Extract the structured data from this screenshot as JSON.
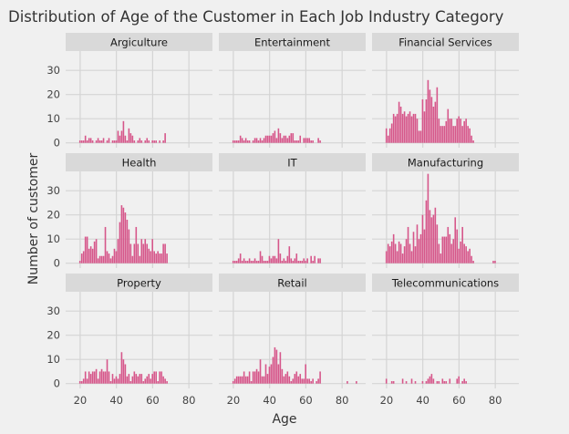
{
  "chart_data": {
    "type": "bar",
    "title": "Distribution of Age of the Customer in Each Job Industry Category",
    "xlabel": "Age",
    "ylabel": "Number of customer",
    "xlim": [
      12,
      93
    ],
    "ylim": [
      -2,
      38
    ],
    "xticks": [
      20,
      40,
      60,
      80
    ],
    "yticks": [
      0,
      10,
      20,
      30
    ],
    "grid": true,
    "bar_color": "#d6568a",
    "panels": [
      {
        "name": "Argiculture",
        "ages": [
          20,
          21,
          22,
          23,
          24,
          25,
          26,
          27,
          28,
          29,
          30,
          31,
          32,
          33,
          34,
          35,
          36,
          37,
          38,
          39,
          40,
          41,
          42,
          43,
          44,
          45,
          46,
          47,
          48,
          49,
          50,
          51,
          52,
          53,
          54,
          55,
          56,
          57,
          58,
          59,
          60,
          61,
          62,
          63,
          64,
          65,
          66,
          67,
          68
        ],
        "counts": [
          1,
          1,
          1,
          3,
          1,
          2,
          2,
          1,
          0,
          1,
          2,
          1,
          1,
          2,
          0,
          1,
          2,
          0,
          1,
          1,
          1,
          5,
          3,
          5,
          9,
          3,
          1,
          6,
          4,
          3,
          1,
          0,
          1,
          2,
          1,
          0,
          1,
          2,
          1,
          0,
          1,
          1,
          1,
          0,
          1,
          0,
          1,
          4,
          0
        ]
      },
      {
        "name": "Entertainment",
        "ages": [
          20,
          21,
          22,
          23,
          24,
          25,
          26,
          27,
          28,
          29,
          30,
          31,
          32,
          33,
          34,
          35,
          36,
          37,
          38,
          39,
          40,
          41,
          42,
          43,
          44,
          45,
          46,
          47,
          48,
          49,
          50,
          51,
          52,
          53,
          54,
          55,
          56,
          57,
          58,
          59,
          60,
          61,
          62,
          63,
          64,
          65,
          66,
          67,
          68
        ],
        "counts": [
          1,
          1,
          1,
          1,
          3,
          2,
          1,
          2,
          1,
          1,
          0,
          1,
          2,
          2,
          1,
          2,
          1,
          2,
          3,
          3,
          3,
          3,
          4,
          5,
          2,
          6,
          4,
          2,
          3,
          3,
          2,
          3,
          4,
          4,
          1,
          1,
          1,
          3,
          0,
          2,
          2,
          2,
          2,
          1,
          1,
          0,
          0,
          2,
          1
        ]
      },
      {
        "name": "Financial Services",
        "ages": [
          20,
          21,
          22,
          23,
          24,
          25,
          26,
          27,
          28,
          29,
          30,
          31,
          32,
          33,
          34,
          35,
          36,
          37,
          38,
          39,
          40,
          41,
          42,
          43,
          44,
          45,
          46,
          47,
          48,
          49,
          50,
          51,
          52,
          53,
          54,
          55,
          56,
          57,
          58,
          59,
          60,
          61,
          62,
          63,
          64,
          65,
          66,
          67,
          68
        ],
        "counts": [
          6,
          3,
          6,
          8,
          12,
          11,
          12,
          17,
          15,
          12,
          13,
          11,
          12,
          13,
          11,
          12,
          12,
          10,
          5,
          5,
          18,
          13,
          18,
          26,
          22,
          19,
          15,
          17,
          23,
          10,
          7,
          7,
          7,
          9,
          14,
          10,
          10,
          7,
          7,
          10,
          11,
          10,
          7,
          9,
          10,
          7,
          6,
          3,
          1
        ]
      },
      {
        "name": "Health",
        "ages": [
          20,
          21,
          22,
          23,
          24,
          25,
          26,
          27,
          28,
          29,
          30,
          31,
          32,
          33,
          34,
          35,
          36,
          37,
          38,
          39,
          40,
          41,
          42,
          43,
          44,
          45,
          46,
          47,
          48,
          49,
          50,
          51,
          52,
          53,
          54,
          55,
          56,
          57,
          58,
          59,
          60,
          61,
          62,
          63,
          64,
          65,
          66,
          67,
          68
        ],
        "counts": [
          1,
          4,
          5,
          11,
          11,
          6,
          7,
          6,
          9,
          10,
          2,
          3,
          3,
          3,
          15,
          5,
          4,
          2,
          3,
          6,
          5,
          10,
          17,
          24,
          23,
          21,
          18,
          14,
          8,
          3,
          8,
          15,
          8,
          3,
          10,
          8,
          10,
          8,
          6,
          5,
          10,
          5,
          4,
          5,
          4,
          4,
          8,
          8,
          4
        ]
      },
      {
        "name": "IT",
        "ages": [
          20,
          21,
          22,
          23,
          24,
          25,
          26,
          27,
          28,
          29,
          30,
          31,
          32,
          33,
          34,
          35,
          36,
          37,
          38,
          39,
          40,
          41,
          42,
          43,
          44,
          45,
          46,
          47,
          48,
          49,
          50,
          51,
          52,
          53,
          54,
          55,
          56,
          57,
          58,
          59,
          60,
          61,
          62,
          63,
          64,
          65,
          66,
          67,
          68
        ],
        "counts": [
          1,
          1,
          1,
          2,
          4,
          1,
          2,
          1,
          1,
          2,
          1,
          1,
          2,
          1,
          1,
          5,
          3,
          1,
          1,
          1,
          3,
          2,
          3,
          3,
          2,
          10,
          4,
          1,
          2,
          1,
          3,
          7,
          2,
          1,
          2,
          4,
          1,
          1,
          1,
          2,
          1,
          2,
          0,
          3,
          1,
          3,
          0,
          2,
          2
        ]
      },
      {
        "name": "Manufacturing",
        "ages": [
          20,
          21,
          22,
          23,
          24,
          25,
          26,
          27,
          28,
          29,
          30,
          31,
          32,
          33,
          34,
          35,
          36,
          37,
          38,
          39,
          40,
          41,
          42,
          43,
          44,
          45,
          46,
          47,
          48,
          49,
          50,
          51,
          52,
          53,
          54,
          55,
          56,
          57,
          58,
          59,
          60,
          61,
          62,
          63,
          64,
          65,
          66,
          67,
          68,
          78,
          79,
          80,
          81
        ],
        "counts": [
          5,
          8,
          7,
          9,
          12,
          8,
          5,
          9,
          8,
          4,
          7,
          10,
          15,
          8,
          5,
          13,
          7,
          16,
          10,
          12,
          20,
          14,
          26,
          37,
          22,
          19,
          20,
          23,
          16,
          8,
          4,
          11,
          11,
          11,
          15,
          12,
          8,
          10,
          19,
          14,
          6,
          9,
          15,
          8,
          7,
          5,
          6,
          3,
          1,
          0,
          1,
          1,
          0
        ]
      },
      {
        "name": "Property",
        "ages": [
          20,
          21,
          22,
          23,
          24,
          25,
          26,
          27,
          28,
          29,
          30,
          31,
          32,
          33,
          34,
          35,
          36,
          37,
          38,
          39,
          40,
          41,
          42,
          43,
          44,
          45,
          46,
          47,
          48,
          49,
          50,
          51,
          52,
          53,
          54,
          55,
          56,
          57,
          58,
          59,
          60,
          61,
          62,
          63,
          64,
          65,
          66,
          67,
          68
        ],
        "counts": [
          1,
          1,
          2,
          5,
          2,
          5,
          4,
          5,
          5,
          6,
          2,
          5,
          6,
          5,
          5,
          10,
          5,
          1,
          4,
          2,
          3,
          2,
          4,
          13,
          10,
          8,
          3,
          4,
          1,
          3,
          5,
          4,
          3,
          4,
          4,
          1,
          2,
          3,
          4,
          2,
          4,
          5,
          5,
          1,
          5,
          5,
          3,
          2,
          1
        ]
      },
      {
        "name": "Retail",
        "ages": [
          20,
          21,
          22,
          23,
          24,
          25,
          26,
          27,
          28,
          29,
          30,
          31,
          32,
          33,
          34,
          35,
          36,
          37,
          38,
          39,
          40,
          41,
          42,
          43,
          44,
          45,
          46,
          47,
          48,
          49,
          50,
          51,
          52,
          53,
          54,
          55,
          56,
          57,
          58,
          59,
          60,
          61,
          62,
          63,
          64,
          65,
          66,
          67,
          68,
          69,
          70,
          71,
          72,
          73,
          74,
          75,
          76,
          77,
          78,
          79,
          80,
          81,
          82,
          83,
          84,
          85,
          86,
          87,
          88,
          89,
          90
        ],
        "counts": [
          1,
          2,
          3,
          3,
          3,
          3,
          5,
          3,
          3,
          5,
          1,
          5,
          5,
          6,
          5,
          10,
          3,
          3,
          8,
          4,
          7,
          8,
          11,
          15,
          14,
          8,
          13,
          6,
          3,
          4,
          5,
          3,
          1,
          2,
          4,
          5,
          3,
          4,
          2,
          2,
          8,
          2,
          2,
          1,
          2,
          0,
          1,
          2,
          5,
          0,
          0,
          0,
          0,
          0,
          0,
          0,
          0,
          0,
          0,
          0,
          0,
          0,
          0,
          1,
          0,
          0,
          0,
          0,
          1,
          0,
          0
        ]
      },
      {
        "name": "Telecommunications",
        "ages": [
          20,
          21,
          22,
          23,
          24,
          25,
          26,
          27,
          28,
          29,
          30,
          31,
          32,
          33,
          34,
          35,
          36,
          37,
          38,
          39,
          40,
          41,
          42,
          43,
          44,
          45,
          46,
          47,
          48,
          49,
          50,
          51,
          52,
          53,
          54,
          55,
          56,
          57,
          58,
          59,
          60,
          61,
          62,
          63,
          64,
          65,
          66,
          67,
          68
        ],
        "counts": [
          2,
          0,
          0,
          1,
          1,
          0,
          0,
          0,
          0,
          2,
          0,
          1,
          0,
          0,
          2,
          0,
          1,
          0,
          0,
          0,
          1,
          0,
          1,
          2,
          3,
          4,
          2,
          0,
          1,
          1,
          0,
          2,
          1,
          1,
          0,
          2,
          0,
          0,
          0,
          2,
          3,
          0,
          1,
          2,
          1,
          0,
          0,
          0,
          0
        ]
      }
    ]
  }
}
